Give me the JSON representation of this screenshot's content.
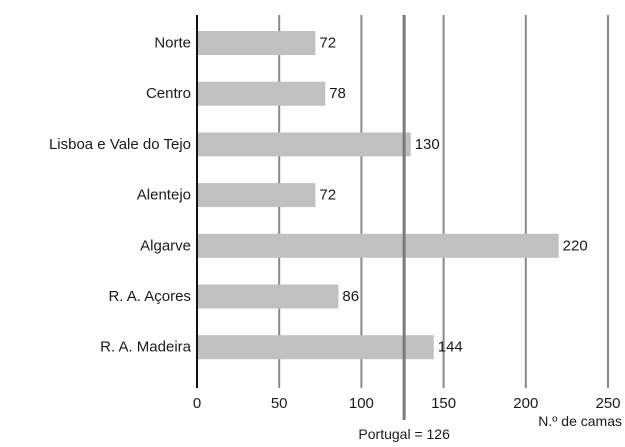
{
  "chart_data": {
    "type": "bar",
    "orientation": "horizontal",
    "categories": [
      "Norte",
      "Centro",
      "Lisboa e Vale do Tejo",
      "Alentejo",
      "Algarve",
      "R. A. Açores",
      "R. A. Madeira"
    ],
    "values": [
      72,
      78,
      130,
      72,
      220,
      86,
      144
    ],
    "value_labels": [
      "72",
      "78",
      "130",
      "72",
      "220",
      "86",
      "144"
    ],
    "xlim": [
      0,
      250
    ],
    "x_ticks": [
      0,
      50,
      100,
      150,
      200,
      250
    ],
    "x_tick_labels": [
      "0",
      "50",
      "100",
      "150",
      "200",
      "250"
    ],
    "xlabel": "N.º de camas",
    "grid": "vertical",
    "reference_line": {
      "value": 126,
      "label": "Portugal = 126"
    },
    "colors": {
      "bar": "#c0c0c0",
      "grid": "#888888",
      "reference": "#7a7a7a",
      "axis": "#111111",
      "text": "#1a1a1a"
    }
  }
}
